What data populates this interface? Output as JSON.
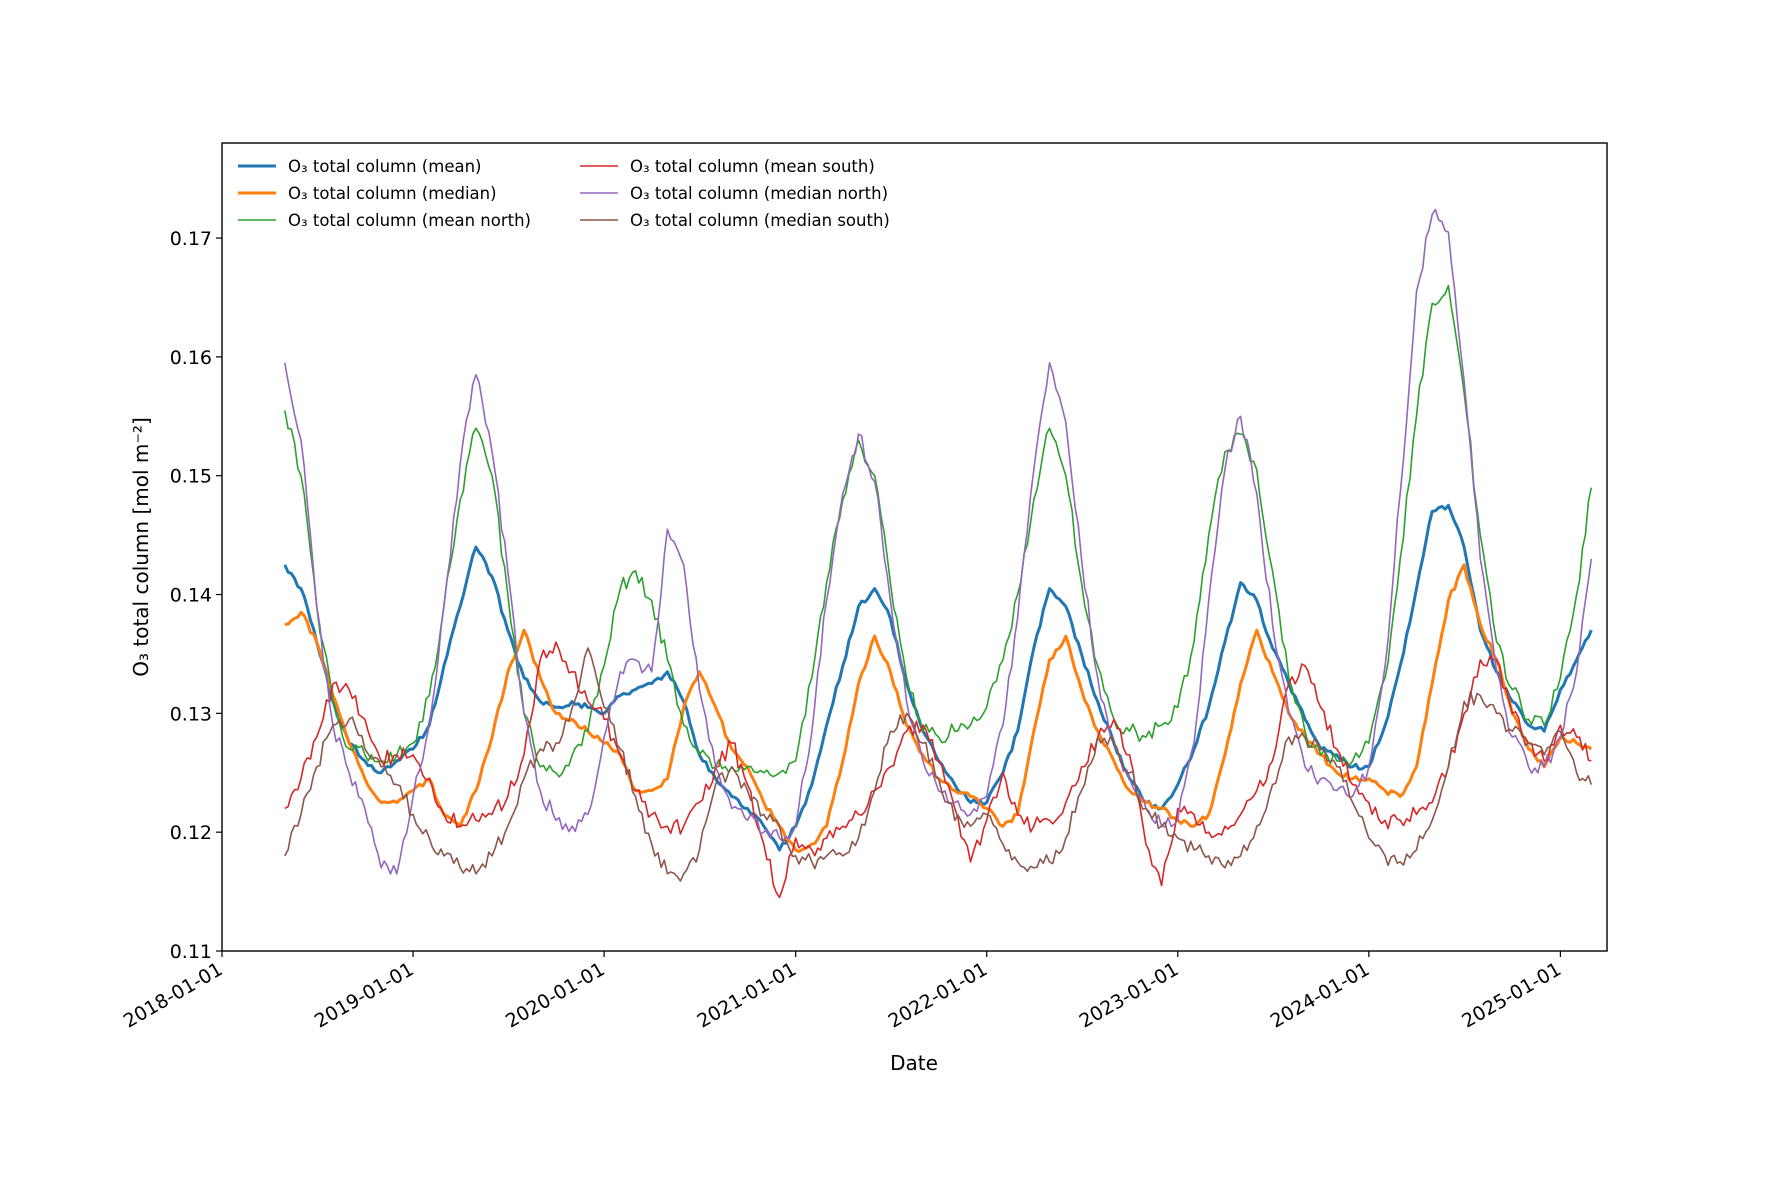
{
  "chart_data": {
    "type": "line",
    "title": "",
    "xlabel": "Date",
    "ylabel": "O₃ total column [mol m⁻²]",
    "xlim": [
      "2018-01-01",
      "2025-03-31"
    ],
    "ylim": [
      0.11,
      0.178
    ],
    "grid": false,
    "legend_position": "top-left",
    "x_ticks": [
      "2018-01-01",
      "2019-01-01",
      "2020-01-01",
      "2021-01-01",
      "2022-01-01",
      "2023-01-01",
      "2024-01-01",
      "2025-01-01"
    ],
    "y_ticks": [
      "0.11",
      "0.12",
      "0.13",
      "0.14",
      "0.15",
      "0.16",
      "0.17"
    ],
    "x": [
      "2018-05-01",
      "2018-06-01",
      "2018-07-01",
      "2018-08-01",
      "2018-09-01",
      "2018-10-01",
      "2018-11-01",
      "2018-12-01",
      "2019-01-01",
      "2019-02-01",
      "2019-03-01",
      "2019-04-01",
      "2019-05-01",
      "2019-06-01",
      "2019-07-01",
      "2019-08-01",
      "2019-09-01",
      "2019-10-01",
      "2019-11-01",
      "2019-12-01",
      "2020-01-01",
      "2020-02-01",
      "2020-03-01",
      "2020-04-01",
      "2020-05-01",
      "2020-06-01",
      "2020-07-01",
      "2020-08-01",
      "2020-09-01",
      "2020-10-01",
      "2020-11-01",
      "2020-12-01",
      "2021-01-01",
      "2021-02-01",
      "2021-03-01",
      "2021-04-01",
      "2021-05-01",
      "2021-06-01",
      "2021-07-01",
      "2021-08-01",
      "2021-09-01",
      "2021-10-01",
      "2021-11-01",
      "2021-12-01",
      "2022-01-01",
      "2022-02-01",
      "2022-03-01",
      "2022-04-01",
      "2022-05-01",
      "2022-06-01",
      "2022-07-01",
      "2022-08-01",
      "2022-09-01",
      "2022-10-01",
      "2022-11-01",
      "2022-12-01",
      "2023-01-01",
      "2023-02-01",
      "2023-03-01",
      "2023-04-01",
      "2023-05-01",
      "2023-06-01",
      "2023-07-01",
      "2023-08-01",
      "2023-09-01",
      "2023-10-01",
      "2023-11-01",
      "2023-12-01",
      "2024-01-01",
      "2024-02-01",
      "2024-03-01",
      "2024-04-01",
      "2024-05-01",
      "2024-06-01",
      "2024-07-01",
      "2024-08-01",
      "2024-09-01",
      "2024-10-01",
      "2024-11-01",
      "2024-12-01",
      "2025-01-01",
      "2025-02-01",
      "2025-03-01"
    ],
    "series": [
      {
        "name": "O₃ total column (mean)",
        "color": "#1f77b4",
        "width": 3,
        "values": [
          0.1425,
          0.1405,
          0.136,
          0.131,
          0.1275,
          0.126,
          0.125,
          0.126,
          0.127,
          0.129,
          0.134,
          0.139,
          0.144,
          0.1415,
          0.137,
          0.133,
          0.131,
          0.1305,
          0.131,
          0.1305,
          0.13,
          0.1315,
          0.132,
          0.1325,
          0.1335,
          0.131,
          0.1265,
          0.1245,
          0.123,
          0.122,
          0.1205,
          0.1185,
          0.1205,
          0.124,
          0.129,
          0.134,
          0.139,
          0.1405,
          0.138,
          0.1325,
          0.1285,
          0.126,
          0.124,
          0.1225,
          0.1225,
          0.125,
          0.1285,
          0.1355,
          0.1405,
          0.139,
          0.135,
          0.131,
          0.1275,
          0.1245,
          0.1225,
          0.122,
          0.124,
          0.127,
          0.1305,
          0.136,
          0.141,
          0.1395,
          0.1355,
          0.1325,
          0.1295,
          0.127,
          0.1265,
          0.1255,
          0.1255,
          0.129,
          0.134,
          0.1405,
          0.147,
          0.1475,
          0.144,
          0.137,
          0.1335,
          0.131,
          0.129,
          0.1285,
          0.132,
          0.1345,
          0.137
        ]
      },
      {
        "name": "O₃ total column (median)",
        "color": "#ff7f0e",
        "width": 3,
        "values": [
          0.1375,
          0.1385,
          0.136,
          0.1315,
          0.1275,
          0.1245,
          0.1225,
          0.1225,
          0.1235,
          0.1245,
          0.1215,
          0.1205,
          0.1235,
          0.128,
          0.1335,
          0.137,
          0.133,
          0.13,
          0.1295,
          0.1285,
          0.1275,
          0.1265,
          0.1235,
          0.1235,
          0.1245,
          0.1305,
          0.1335,
          0.1305,
          0.127,
          0.1255,
          0.1225,
          0.1205,
          0.1185,
          0.119,
          0.1205,
          0.126,
          0.1325,
          0.1365,
          0.1335,
          0.129,
          0.1265,
          0.1245,
          0.1235,
          0.123,
          0.122,
          0.1205,
          0.1215,
          0.1285,
          0.1345,
          0.1365,
          0.132,
          0.1285,
          0.126,
          0.1235,
          0.1225,
          0.122,
          0.121,
          0.1205,
          0.1215,
          0.1265,
          0.1325,
          0.137,
          0.1335,
          0.13,
          0.128,
          0.1265,
          0.125,
          0.1245,
          0.1245,
          0.1235,
          0.123,
          0.1255,
          0.1325,
          0.1395,
          0.1425,
          0.1375,
          0.1345,
          0.13,
          0.127,
          0.1255,
          0.128,
          0.1275,
          0.127
        ]
      },
      {
        "name": "O₃ total column (mean north)",
        "color": "#2ca02c",
        "width": 1.6,
        "values": [
          0.1555,
          0.15,
          0.139,
          0.131,
          0.127,
          0.1265,
          0.126,
          0.1265,
          0.1275,
          0.1315,
          0.139,
          0.148,
          0.154,
          0.15,
          0.14,
          0.13,
          0.1255,
          0.125,
          0.1265,
          0.1285,
          0.134,
          0.1405,
          0.142,
          0.1395,
          0.1345,
          0.129,
          0.1265,
          0.1255,
          0.1255,
          0.1255,
          0.125,
          0.125,
          0.126,
          0.133,
          0.141,
          0.148,
          0.153,
          0.15,
          0.141,
          0.133,
          0.1285,
          0.128,
          0.1285,
          0.129,
          0.1305,
          0.1345,
          0.14,
          0.148,
          0.154,
          0.15,
          0.141,
          0.134,
          0.1295,
          0.1285,
          0.128,
          0.129,
          0.1305,
          0.136,
          0.145,
          0.152,
          0.1535,
          0.1505,
          0.142,
          0.133,
          0.1285,
          0.1265,
          0.126,
          0.126,
          0.1275,
          0.133,
          0.143,
          0.155,
          0.1645,
          0.166,
          0.157,
          0.145,
          0.136,
          0.132,
          0.1295,
          0.129,
          0.133,
          0.14,
          0.149
        ]
      },
      {
        "name": "O₃ total column (mean south)",
        "color": "#d62728",
        "width": 1.6,
        "values": [
          0.122,
          0.1245,
          0.128,
          0.1325,
          0.132,
          0.1295,
          0.126,
          0.1265,
          0.1265,
          0.1245,
          0.1215,
          0.1205,
          0.121,
          0.1215,
          0.123,
          0.1265,
          0.1345,
          0.136,
          0.1335,
          0.131,
          0.1295,
          0.1265,
          0.1235,
          0.1215,
          0.1205,
          0.1205,
          0.1225,
          0.1255,
          0.1275,
          0.124,
          0.119,
          0.1145,
          0.1195,
          0.1185,
          0.1195,
          0.1205,
          0.1215,
          0.1235,
          0.1255,
          0.1285,
          0.129,
          0.126,
          0.122,
          0.1175,
          0.121,
          0.125,
          0.1215,
          0.1205,
          0.121,
          0.1225,
          0.1255,
          0.128,
          0.1295,
          0.1265,
          0.119,
          0.1155,
          0.122,
          0.1215,
          0.12,
          0.1205,
          0.1215,
          0.1235,
          0.126,
          0.1325,
          0.134,
          0.1305,
          0.127,
          0.124,
          0.1225,
          0.121,
          0.121,
          0.1215,
          0.1225,
          0.1255,
          0.13,
          0.1345,
          0.1345,
          0.13,
          0.1275,
          0.126,
          0.129,
          0.128,
          0.126
        ]
      },
      {
        "name": "O₃ total column (median north)",
        "color": "#9467bd",
        "width": 1.6,
        "values": [
          0.1595,
          0.153,
          0.139,
          0.129,
          0.125,
          0.122,
          0.117,
          0.1165,
          0.123,
          0.129,
          0.139,
          0.151,
          0.1585,
          0.152,
          0.142,
          0.13,
          0.1235,
          0.121,
          0.1205,
          0.1215,
          0.128,
          0.1335,
          0.1345,
          0.1335,
          0.1455,
          0.1425,
          0.132,
          0.1255,
          0.122,
          0.121,
          0.12,
          0.1195,
          0.1205,
          0.1285,
          0.1395,
          0.1485,
          0.1535,
          0.1495,
          0.1395,
          0.131,
          0.126,
          0.1235,
          0.1225,
          0.1215,
          0.123,
          0.129,
          0.138,
          0.1505,
          0.1595,
          0.1545,
          0.143,
          0.133,
          0.1275,
          0.1245,
          0.122,
          0.1205,
          0.121,
          0.1275,
          0.1395,
          0.1505,
          0.155,
          0.1485,
          0.1375,
          0.13,
          0.1255,
          0.1245,
          0.1235,
          0.123,
          0.1255,
          0.134,
          0.1485,
          0.1655,
          0.172,
          0.1705,
          0.158,
          0.143,
          0.1335,
          0.128,
          0.1255,
          0.1255,
          0.128,
          0.1335,
          0.143
        ]
      },
      {
        "name": "O₃ total column (median south)",
        "color": "#8c564b",
        "width": 1.6,
        "values": [
          0.118,
          0.1215,
          0.1255,
          0.129,
          0.1295,
          0.127,
          0.1255,
          0.124,
          0.1215,
          0.1195,
          0.118,
          0.117,
          0.1165,
          0.118,
          0.1205,
          0.1245,
          0.127,
          0.1275,
          0.1305,
          0.1355,
          0.1305,
          0.127,
          0.123,
          0.119,
          0.1165,
          0.1165,
          0.1185,
          0.124,
          0.1255,
          0.1235,
          0.1215,
          0.1205,
          0.118,
          0.1175,
          0.118,
          0.118,
          0.1195,
          0.1235,
          0.1285,
          0.13,
          0.1275,
          0.1245,
          0.121,
          0.1205,
          0.1215,
          0.119,
          0.1175,
          0.117,
          0.1175,
          0.1195,
          0.1235,
          0.128,
          0.1275,
          0.125,
          0.122,
          0.1205,
          0.1195,
          0.1185,
          0.118,
          0.117,
          0.118,
          0.1205,
          0.124,
          0.128,
          0.128,
          0.127,
          0.1255,
          0.1225,
          0.1195,
          0.118,
          0.1175,
          0.1185,
          0.121,
          0.1255,
          0.131,
          0.1315,
          0.13,
          0.1285,
          0.1275,
          0.1265,
          0.1285,
          0.125,
          0.124
        ]
      }
    ]
  }
}
